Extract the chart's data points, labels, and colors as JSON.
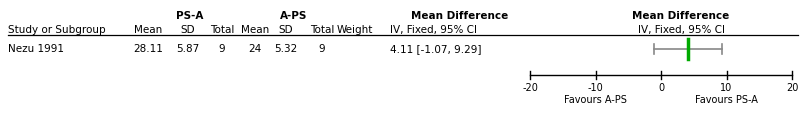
{
  "study": "Nezu 1991",
  "psa_mean": "28.11",
  "psa_sd": "5.87",
  "psa_total": "9",
  "aps_mean": "24",
  "aps_sd": "5.32",
  "aps_total": "9",
  "weight": "",
  "md_text": "4.11 [-1.07, 9.29]",
  "md_point": 4.11,
  "md_low": -1.07,
  "md_high": 9.29,
  "axis_min": -20,
  "axis_max": 20,
  "axis_ticks": [
    -20,
    -10,
    0,
    10,
    20
  ],
  "header1_psa": "PS-A",
  "header1_aps": "A-PS",
  "header1_md1": "Mean Difference",
  "header1_md2": "Mean Difference",
  "header2": [
    "Study or Subgroup",
    "Mean",
    "SD",
    "Total",
    "Mean",
    "SD",
    "Total",
    "Weight",
    "IV, Fixed, 95% CI",
    "IV, Fixed, 95% CI"
  ],
  "favours_left": "Favours A-PS",
  "favours_right": "Favours PS-A",
  "green_color": "#00aa00",
  "ci_color": "#888888",
  "text_color": "#000000",
  "bg_color": "#ffffff",
  "fig_width": 8.0,
  "fig_height": 1.33,
  "dpi": 100
}
